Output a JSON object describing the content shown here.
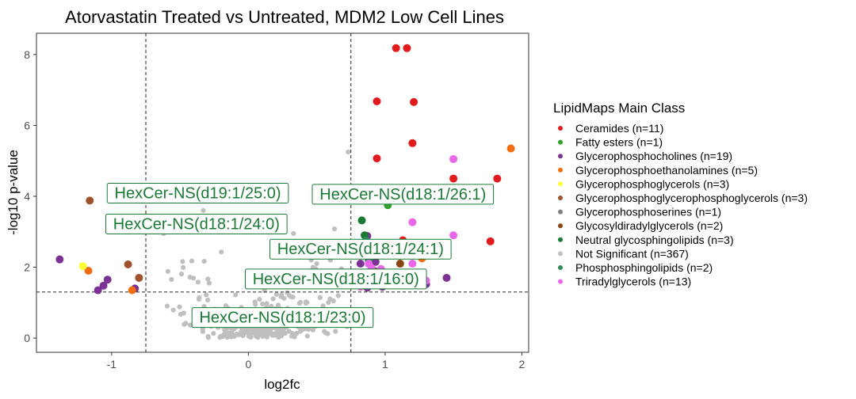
{
  "chart_data": {
    "type": "scatter",
    "title": "Atorvastatin Treated vs Untreated, MDM2 Low Cell Lines",
    "xlabel": "log2fc",
    "ylabel": "-log10 p-value",
    "xlim": [
      -1.55,
      2.05
    ],
    "ylim": [
      -0.4,
      8.6
    ],
    "xticks": [
      -1,
      0,
      1,
      2
    ],
    "yticks": [
      0,
      2,
      4,
      6,
      8
    ],
    "grid": false,
    "thresholds": {
      "x": [
        -0.75,
        0.75
      ],
      "y": 1.3
    },
    "legend": {
      "title": "LipidMaps Main Class",
      "placement": "right",
      "entries": [
        {
          "label": "Ceramides (n=11)",
          "color": "#e31a1c"
        },
        {
          "label": "Fatty esters (n=1)",
          "color": "#33a02c"
        },
        {
          "label": "Glycerophosphocholines (n=19)",
          "color": "#7b3294"
        },
        {
          "label": "Glycerophosphoethanolamines (n=5)",
          "color": "#f46d10"
        },
        {
          "label": "Glycerophosphoglycerols (n=3)",
          "color": "#ffff33"
        },
        {
          "label": "Glycerophosphoglycerophosphoglycerols (n=3)",
          "color": "#a0522d"
        },
        {
          "label": "Glycerophosphoserines (n=1)",
          "color": "#808080"
        },
        {
          "label": "Glycosyldiradylglycerols (n=2)",
          "color": "#8b4513"
        },
        {
          "label": "Neutral glycosphingolipids (n=3)",
          "color": "#1a7a35"
        },
        {
          "label": "Not Significant (n=367)",
          "color": "#bfbfbf"
        },
        {
          "label": "Phosphosphingolipids (n=2)",
          "color": "#2e8b57"
        },
        {
          "label": "Triradylglycerols (n=13)",
          "color": "#e966e9"
        }
      ]
    },
    "labels": [
      {
        "text": "HexCer-NS(d19:1/25:0)",
        "x": -0.37,
        "y": 4.1
      },
      {
        "text": "HexCer-NS(d18:1/26:1)",
        "x": 1.13,
        "y": 4.07
      },
      {
        "text": "HexCer-NS(d18:1/24:0)",
        "x": -0.38,
        "y": 3.23
      },
      {
        "text": "HexCer-NS(d18:1/24:1)",
        "x": 0.82,
        "y": 2.52
      },
      {
        "text": "HexCer-NS(d18:1/16:0)",
        "x": 0.64,
        "y": 1.68
      },
      {
        "text": "HexCer-NS(d18:1/23:0)",
        "x": 0.25,
        "y": 0.59
      }
    ],
    "series": [
      {
        "name": "Ceramides (n=11)",
        "color": "#e31a1c",
        "points": [
          [
            1.08,
            8.18
          ],
          [
            1.16,
            8.18
          ],
          [
            0.94,
            6.68
          ],
          [
            1.21,
            6.66
          ],
          [
            1.2,
            5.5
          ],
          [
            0.94,
            5.07
          ],
          [
            1.5,
            4.5
          ],
          [
            1.82,
            4.5
          ],
          [
            1.77,
            2.73
          ],
          [
            1.13,
            2.76
          ],
          [
            1.53,
            4.08
          ]
        ]
      },
      {
        "name": "Fatty esters (n=1)",
        "color": "#33a02c",
        "points": [
          [
            1.02,
            3.75
          ]
        ]
      },
      {
        "name": "Glycerophosphocholines (n=19)",
        "color": "#7b3294",
        "points": [
          [
            -1.38,
            2.22
          ],
          [
            -1.03,
            1.65
          ],
          [
            -1.06,
            1.48
          ],
          [
            -1.1,
            1.35
          ],
          [
            -0.83,
            1.4
          ],
          [
            0.87,
            2.88
          ],
          [
            0.82,
            2.1
          ],
          [
            0.9,
            1.8
          ],
          [
            0.85,
            1.6
          ],
          [
            0.87,
            1.42
          ],
          [
            0.93,
            2.15
          ],
          [
            0.98,
            1.45
          ],
          [
            1.3,
            1.52
          ],
          [
            1.1,
            2.4
          ],
          [
            1.45,
            1.7
          ],
          [
            0.83,
            1.5
          ],
          [
            0.88,
            2.3
          ],
          [
            1.0,
            1.65
          ],
          [
            1.15,
            1.55
          ]
        ]
      },
      {
        "name": "Glycerophosphoethanolamines (n=5)",
        "color": "#f46d10",
        "points": [
          [
            -1.17,
            1.9
          ],
          [
            -0.85,
            1.35
          ],
          [
            1.92,
            5.35
          ],
          [
            1.27,
            2.25
          ],
          [
            1.05,
            2.35
          ]
        ]
      },
      {
        "name": "Glycerophosphoglycerols (n=3)",
        "color": "#ffff33",
        "points": [
          [
            -1.21,
            2.03
          ],
          [
            1.0,
            2.55
          ],
          [
            0.88,
            1.62
          ]
        ]
      },
      {
        "name": "Glycerophosphoglycerophosphoglycerols (n=3)",
        "color": "#a0522d",
        "points": [
          [
            -0.8,
            1.7
          ],
          [
            -0.88,
            2.08
          ],
          [
            -1.16,
            3.88
          ]
        ]
      },
      {
        "name": "Glycerophosphoserines (n=1)",
        "color": "#808080",
        "points": [
          [
            0.95,
            2.55
          ]
        ]
      },
      {
        "name": "Glycosyldiradylglycerols (n=2)",
        "color": "#8b4513",
        "points": [
          [
            1.11,
            2.1
          ],
          [
            0.92,
            1.9
          ]
        ]
      },
      {
        "name": "Neutral glycosphingolipids (n=3)",
        "color": "#1a7a35",
        "points": [
          [
            0.83,
            3.32
          ],
          [
            0.85,
            2.9
          ],
          [
            0.84,
            2.45
          ]
        ]
      },
      {
        "name": "Not Significant (n=367)",
        "color": "#bfbfbf",
        "points": []
      },
      {
        "name": "Phosphosphingolipids (n=2)",
        "color": "#2e8b57",
        "points": [
          [
            0.86,
            2.75
          ],
          [
            0.88,
            2.2
          ]
        ]
      },
      {
        "name": "Triradylglycerols (n=13)",
        "color": "#e966e9",
        "points": [
          [
            1.5,
            5.05
          ],
          [
            1.2,
            3.27
          ],
          [
            0.93,
            2.55
          ],
          [
            0.88,
            2.1
          ],
          [
            0.9,
            1.98
          ],
          [
            0.97,
            1.95
          ],
          [
            1.2,
            2.1
          ],
          [
            0.91,
            1.72
          ],
          [
            0.85,
            1.62
          ],
          [
            0.93,
            1.55
          ],
          [
            0.82,
            1.45
          ],
          [
            1.3,
            1.62
          ],
          [
            1.5,
            2.9
          ]
        ]
      }
    ]
  }
}
